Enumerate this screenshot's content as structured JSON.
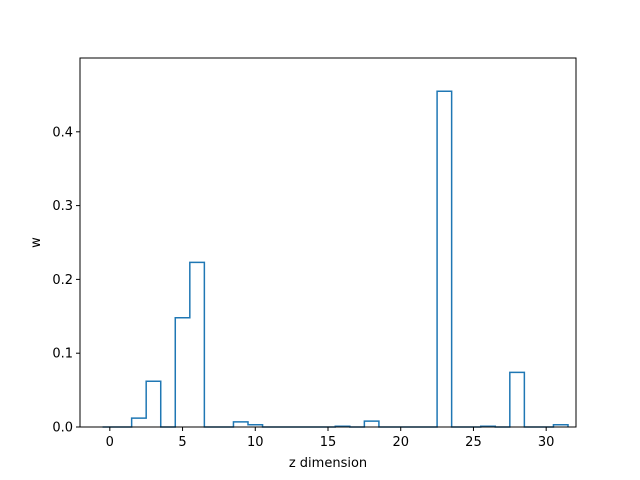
{
  "chart_data": {
    "type": "bar",
    "style": "step-outline",
    "title": "",
    "xlabel": "z dimension",
    "ylabel": "w",
    "xlim": [
      -2.05,
      32.05
    ],
    "ylim": [
      0,
      0.5
    ],
    "x_ticks": [
      0,
      5,
      10,
      15,
      20,
      25,
      30
    ],
    "y_ticks": [
      0.0,
      0.1,
      0.2,
      0.3,
      0.4
    ],
    "y_tick_labels": [
      "0.0",
      "0.1",
      "0.2",
      "0.3",
      "0.4"
    ],
    "grid": false,
    "line_color": "#1f77b4",
    "x": [
      0,
      1,
      2,
      3,
      4,
      5,
      6,
      7,
      8,
      9,
      10,
      11,
      12,
      13,
      14,
      15,
      16,
      17,
      18,
      19,
      20,
      21,
      22,
      23,
      24,
      25,
      26,
      27,
      28,
      29,
      30,
      31
    ],
    "values": [
      0.0,
      0.0,
      0.012,
      0.062,
      0.0,
      0.148,
      0.223,
      0.0,
      0.0,
      0.007,
      0.003,
      0.0,
      0.0,
      0.0,
      0.0,
      0.0,
      0.001,
      0.0,
      0.008,
      0.0,
      0.0,
      0.0,
      0.0,
      0.455,
      0.0,
      0.0,
      0.001,
      0.0,
      0.074,
      0.0,
      0.0,
      0.003
    ]
  }
}
